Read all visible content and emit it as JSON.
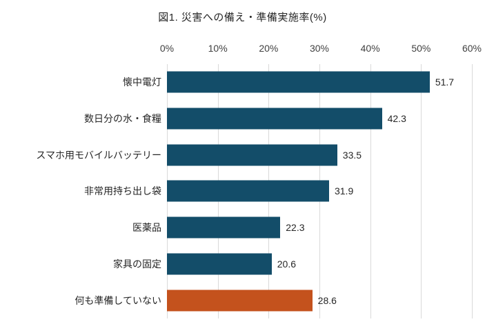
{
  "title": "図1. 災害への備え・準備実施率(%)",
  "chart_data": {
    "type": "bar",
    "orientation": "horizontal",
    "title": "図1. 災害への備え・準備実施率(%)",
    "categories": [
      "懐中電灯",
      "数日分の水・食糧",
      "スマホ用モバイルバッテリー",
      "非常用持ち出し袋",
      "医薬品",
      "家具の固定",
      "何も準備していない"
    ],
    "values": [
      51.7,
      42.3,
      33.5,
      31.9,
      22.3,
      20.6,
      28.6
    ],
    "highlight_index": 6,
    "xlim": [
      0,
      60
    ],
    "tick_values": [
      0,
      10,
      20,
      30,
      40,
      50,
      60
    ],
    "tick_labels": [
      "0%",
      "10%",
      "20%",
      "30%",
      "40%",
      "50%",
      "60%"
    ],
    "axis_position": "top",
    "grid": true,
    "legend": false,
    "colors": {
      "bar_default": "#134d69",
      "bar_highlight": "#c4521d",
      "gridline": "#d9d9d9",
      "tick_text": "#404040",
      "label_text": "#262626"
    }
  }
}
